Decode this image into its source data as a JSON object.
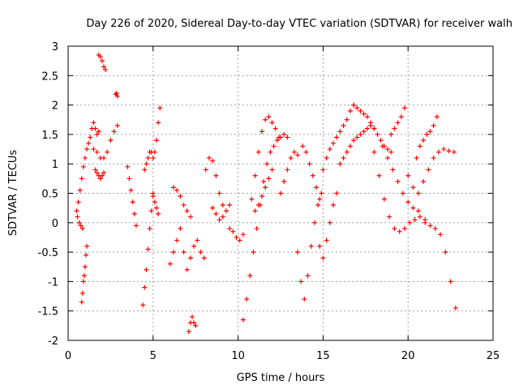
{
  "chart_data": {
    "type": "scatter",
    "title": "Day 226 of 2020, Sidereal Day-to-day VTEC variation (SDTVAR) for receiver walh",
    "xlabel": "GPS time / hours",
    "ylabel": "SDTVAR / TECUs",
    "xlim": [
      0,
      25
    ],
    "ylim": [
      -2,
      3
    ],
    "xticks": [
      0,
      5,
      10,
      15,
      20,
      25
    ],
    "yticks": [
      -2,
      -1.5,
      -1,
      -0.5,
      0,
      0.5,
      1,
      1.5,
      2,
      2.5,
      3
    ],
    "xtick_labels": [
      "0",
      "5",
      "10",
      "15",
      "20",
      "25"
    ],
    "ytick_labels": [
      "-2",
      "-1.5",
      "-1",
      "-0.5",
      "0",
      "0.5",
      "1",
      "1.5",
      "2",
      "2.5",
      "3"
    ],
    "grid": true,
    "marker": "+",
    "color": "#ff0000",
    "series": [
      {
        "name": "trace-1",
        "x": [
          0.5,
          0.6,
          0.7,
          0.8,
          0.9,
          1.0,
          1.1,
          1.2,
          1.3,
          1.4,
          1.5,
          1.6,
          1.7,
          1.8
        ],
        "y": [
          0.2,
          0.35,
          0.55,
          0.75,
          0.95,
          1.1,
          1.25,
          1.35,
          1.45,
          1.6,
          1.7,
          1.6,
          1.5,
          1.55
        ]
      },
      {
        "name": "trace-2",
        "x": [
          0.55,
          0.65,
          0.75,
          0.85
        ],
        "y": [
          0.1,
          0.0,
          -0.05,
          -0.1
        ]
      },
      {
        "name": "trace-3",
        "x": [
          0.8,
          0.85,
          0.9,
          0.95,
          1.0,
          1.05,
          1.1
        ],
        "y": [
          -1.35,
          -1.2,
          -1.0,
          -0.9,
          -0.75,
          -0.55,
          -0.4
        ]
      },
      {
        "name": "trace-4",
        "x": [
          1.5,
          1.7,
          1.9,
          2.1,
          2.3,
          2.5,
          2.7,
          2.9
        ],
        "y": [
          1.25,
          1.2,
          1.1,
          1.1,
          1.2,
          1.4,
          1.55,
          1.65
        ]
      },
      {
        "name": "trace-5",
        "x": [
          1.6,
          1.7,
          1.8,
          1.9,
          2.0,
          2.1
        ],
        "y": [
          0.9,
          0.85,
          0.8,
          0.75,
          0.8,
          0.85
        ]
      },
      {
        "name": "trace-6",
        "x": [
          1.8,
          1.9,
          2.0,
          2.1,
          2.2
        ],
        "y": [
          2.85,
          2.82,
          2.75,
          2.65,
          2.6
        ]
      },
      {
        "name": "trace-7",
        "x": [
          2.8,
          2.85,
          2.9
        ],
        "y": [
          2.18,
          2.2,
          2.15
        ]
      },
      {
        "name": "trace-8",
        "x": [
          3.5,
          3.6,
          3.7,
          3.8,
          3.9,
          4.0
        ],
        "y": [
          0.95,
          0.75,
          0.55,
          0.35,
          0.15,
          -0.05
        ]
      },
      {
        "name": "trace-9",
        "x": [
          4.4,
          4.5,
          4.6,
          4.7,
          4.8,
          4.9,
          5.0
        ],
        "y": [
          -1.4,
          -1.1,
          -0.8,
          -0.45,
          -0.1,
          0.2,
          0.45
        ]
      },
      {
        "name": "trace-10",
        "x": [
          4.5,
          4.6,
          4.7,
          4.8,
          4.9,
          5.0
        ],
        "y": [
          0.9,
          1.0,
          1.1,
          1.2,
          1.2,
          1.1
        ]
      },
      {
        "name": "trace-11",
        "x": [
          5.1,
          5.2,
          5.3,
          5.4
        ],
        "y": [
          1.2,
          1.4,
          1.7,
          1.95
        ]
      },
      {
        "name": "trace-12",
        "x": [
          5.0,
          5.1,
          5.2,
          5.3
        ],
        "y": [
          0.5,
          0.35,
          0.25,
          0.15
        ]
      },
      {
        "name": "trace-13",
        "x": [
          6.0,
          6.2,
          6.4,
          6.6,
          6.8,
          7.0,
          7.2,
          7.4,
          7.6,
          7.8,
          8.0
        ],
        "y": [
          -0.7,
          -0.5,
          -0.3,
          -0.1,
          -0.5,
          -0.8,
          -0.6,
          -0.4,
          -0.3,
          -0.5,
          -0.6
        ]
      },
      {
        "name": "trace-14",
        "x": [
          6.2,
          6.4,
          6.6,
          6.8,
          7.0,
          7.2
        ],
        "y": [
          0.6,
          0.55,
          0.45,
          0.3,
          0.2,
          0.1
        ]
      },
      {
        "name": "trace-15",
        "x": [
          7.1,
          7.2,
          7.3,
          7.4,
          7.5
        ],
        "y": [
          -1.85,
          -1.7,
          -1.6,
          -1.7,
          -1.75
        ]
      },
      {
        "name": "trace-16",
        "x": [
          8.1,
          8.3,
          8.5,
          8.7,
          8.9,
          9.1
        ],
        "y": [
          0.9,
          1.1,
          1.05,
          0.8,
          0.5,
          0.3
        ]
      },
      {
        "name": "trace-17",
        "x": [
          8.5,
          8.7,
          8.9,
          9.1,
          9.3,
          9.5
        ],
        "y": [
          0.25,
          0.15,
          0.05,
          0.1,
          0.2,
          0.3
        ]
      },
      {
        "name": "trace-18",
        "x": [
          9.5,
          9.7,
          9.9,
          10.1,
          10.3
        ],
        "y": [
          -0.1,
          -0.15,
          -0.25,
          -0.3,
          -0.2
        ]
      },
      {
        "name": "trace-19",
        "x": [
          10.3,
          10.5,
          10.7,
          10.9,
          11.1,
          11.3,
          11.5,
          11.7,
          11.9,
          12.1,
          12.3,
          12.5,
          12.7,
          12.9
        ],
        "y": [
          -1.65,
          -1.3,
          -0.9,
          -0.5,
          -0.1,
          0.3,
          0.7,
          1.0,
          1.2,
          1.3,
          1.4,
          1.45,
          1.5,
          1.45
        ]
      },
      {
        "name": "trace-20",
        "x": [
          10.8,
          11.0,
          11.2,
          11.4,
          11.6,
          11.8,
          12.0,
          12.2,
          12.4
        ],
        "y": [
          0.4,
          0.8,
          1.2,
          1.55,
          1.75,
          1.8,
          1.7,
          1.6,
          1.45
        ]
      },
      {
        "name": "trace-21",
        "x": [
          11.0,
          11.2,
          11.4,
          11.6,
          11.8,
          12.0
        ],
        "y": [
          0.2,
          0.3,
          0.45,
          0.6,
          0.75,
          0.9
        ]
      },
      {
        "name": "trace-22",
        "x": [
          12.5,
          12.7,
          12.9,
          13.1,
          13.3,
          13.5
        ],
        "y": [
          0.5,
          0.7,
          0.9,
          1.1,
          1.2,
          1.15
        ]
      },
      {
        "name": "trace-23",
        "x": [
          13.5,
          13.7,
          13.9,
          14.1,
          14.3,
          14.5,
          14.7,
          14.9
        ],
        "y": [
          -0.5,
          -1.0,
          -1.3,
          -0.9,
          -0.4,
          0.0,
          0.3,
          0.5
        ]
      },
      {
        "name": "trace-24",
        "x": [
          13.8,
          14.0,
          14.2,
          14.4,
          14.6,
          14.8
        ],
        "y": [
          1.3,
          1.2,
          1.0,
          0.8,
          0.6,
          0.4
        ]
      },
      {
        "name": "trace-25",
        "x": [
          14.8,
          15.0,
          15.2,
          15.4,
          15.6,
          15.8
        ],
        "y": [
          -0.4,
          -0.6,
          -0.3,
          0.0,
          0.3,
          0.5
        ]
      },
      {
        "name": "trace-26",
        "x": [
          15.0,
          15.2,
          15.4,
          15.6,
          15.8,
          16.0,
          16.2,
          16.4,
          16.6,
          16.8
        ],
        "y": [
          0.9,
          1.1,
          1.25,
          1.35,
          1.45,
          1.55,
          1.65,
          1.75,
          1.9,
          2.0
        ]
      },
      {
        "name": "trace-27",
        "x": [
          16.8,
          17.0,
          17.2,
          17.4,
          17.6,
          17.8,
          18.0,
          18.2,
          18.4,
          18.6,
          18.8,
          19.0
        ],
        "y": [
          2.0,
          1.95,
          1.9,
          1.85,
          1.8,
          1.7,
          1.6,
          1.5,
          1.4,
          1.3,
          1.25,
          1.2
        ]
      },
      {
        "name": "trace-28",
        "x": [
          16.0,
          16.2,
          16.4,
          16.6,
          16.8,
          17.0,
          17.2,
          17.4,
          17.6,
          17.8,
          18.0
        ],
        "y": [
          1.0,
          1.1,
          1.2,
          1.3,
          1.4,
          1.45,
          1.5,
          1.55,
          1.6,
          1.65,
          1.6
        ]
      },
      {
        "name": "trace-29",
        "x": [
          18.0,
          18.3,
          18.6,
          18.9,
          19.2,
          19.5,
          19.8,
          20.1,
          20.4,
          20.7,
          21.0
        ],
        "y": [
          1.2,
          0.8,
          0.4,
          0.1,
          -0.1,
          -0.15,
          -0.1,
          0.0,
          0.05,
          0.1,
          0.05
        ]
      },
      {
        "name": "trace-30",
        "x": [
          18.5,
          18.8,
          19.1,
          19.4,
          19.7,
          20.0,
          20.3,
          20.6
        ],
        "y": [
          1.3,
          1.1,
          0.9,
          0.7,
          0.5,
          0.35,
          0.25,
          0.2
        ]
      },
      {
        "name": "trace-31",
        "x": [
          19.0,
          19.2,
          19.4,
          19.6,
          19.8
        ],
        "y": [
          1.5,
          1.6,
          1.7,
          1.8,
          1.95
        ]
      },
      {
        "name": "trace-32",
        "x": [
          20.0,
          20.3,
          20.6,
          20.9,
          21.2,
          21.5,
          21.8,
          22.1,
          22.4,
          22.7
        ],
        "y": [
          0.8,
          0.6,
          0.5,
          0.7,
          0.9,
          1.1,
          1.2,
          1.25,
          1.22,
          1.2
        ]
      },
      {
        "name": "trace-33",
        "x": [
          20.5,
          20.7,
          20.9,
          21.1,
          21.3,
          21.5,
          21.7
        ],
        "y": [
          1.1,
          1.3,
          1.4,
          1.5,
          1.55,
          1.65,
          1.8
        ]
      },
      {
        "name": "trace-34",
        "x": [
          21.0,
          21.3,
          21.6,
          21.9,
          22.2,
          22.5,
          22.8
        ],
        "y": [
          0.0,
          -0.05,
          -0.1,
          -0.2,
          -0.5,
          -1.0,
          -1.45
        ]
      }
    ]
  }
}
